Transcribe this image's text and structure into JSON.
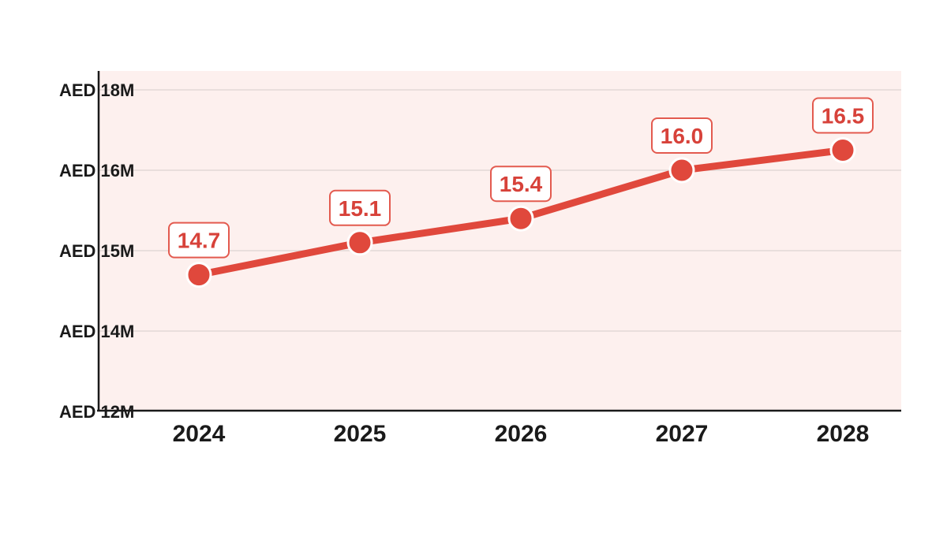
{
  "chart_data": {
    "type": "line",
    "title": "",
    "xlabel": "",
    "ylabel": "",
    "categories": [
      "2024",
      "2025",
      "2026",
      "2027",
      "2028"
    ],
    "series": [
      {
        "values": [
          14.7,
          15.1,
          15.4,
          16.0,
          16.5
        ],
        "data_labels": [
          "14.7",
          "15.1",
          "15.4",
          "16.0",
          "16.5"
        ]
      }
    ],
    "y_ticks": [
      {
        "label": "AED 12M",
        "value": 12
      },
      {
        "label": "AED 14M",
        "value": 14
      },
      {
        "label": "AED 15M",
        "value": 15
      },
      {
        "label": "AED 16M",
        "value": 16
      },
      {
        "label": "AED 18M",
        "value": 18
      }
    ],
    "grid": true,
    "legend": "none"
  },
  "colors": {
    "series": "#e0483c",
    "label_text": "#d7423a",
    "label_border": "#e35a4f",
    "plot_background": "#fdf0ee",
    "gridline": "#e9dedc",
    "axis": "#1a1a1a",
    "tick_text": "#1a1a1a"
  }
}
